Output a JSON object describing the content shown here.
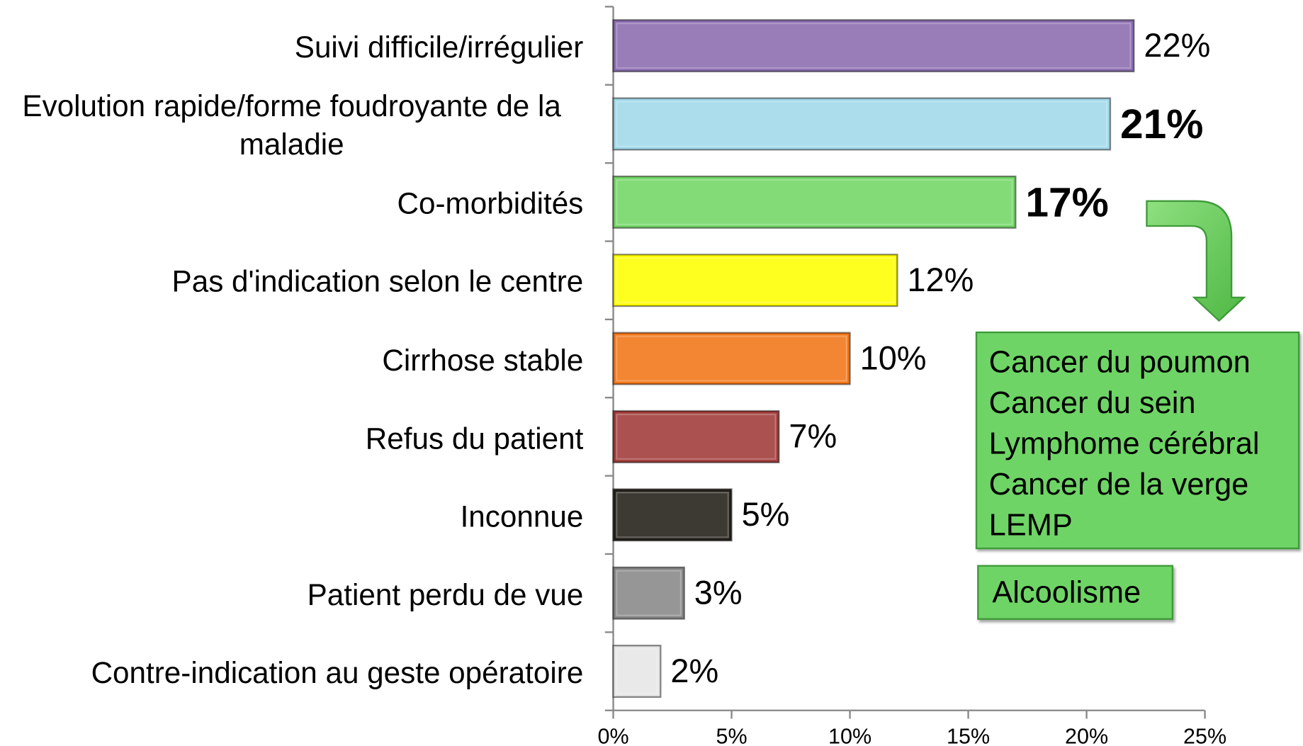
{
  "chart_data": {
    "type": "barh",
    "categories": [
      "Suivi difficile/irrégulier",
      "Evolution rapide/forme foudroyante de la maladie",
      "Co-morbidités",
      "Pas d'indication selon le centre",
      "Cirrhose stable",
      "Refus du patient",
      "Inconnue",
      "Patient perdu de vue",
      "Contre-indication au geste opératoire"
    ],
    "values": [
      22,
      21,
      17,
      12,
      10,
      7,
      5,
      3,
      2
    ],
    "value_labels": [
      "22%",
      "21%",
      "17%",
      "12%",
      "10%",
      "7%",
      "5%",
      "3%",
      "2%"
    ],
    "value_label_bold": [
      false,
      true,
      true,
      false,
      false,
      false,
      false,
      false,
      false
    ],
    "colors": [
      "#8a6cb0",
      "#a0d9ea",
      "#72d666",
      "#ffff00",
      "#f27617",
      "#a03a38",
      "#231f18",
      "#888888",
      "#e6e6e6"
    ],
    "xlim": [
      0,
      25
    ],
    "xticks": [
      {
        "value": 0,
        "label": "0%"
      },
      {
        "value": 5,
        "label": "5%"
      },
      {
        "value": 10,
        "label": "10%"
      },
      {
        "value": 15,
        "label": "15%"
      },
      {
        "value": 20,
        "label": "20%"
      },
      {
        "value": 25,
        "label": "25%"
      }
    ],
    "annotations": [
      {
        "lines": [
          "Cancer du poumon",
          "Cancer du sein",
          "Lymphome cérébral",
          "Cancer de la verge",
          "LEMP"
        ]
      },
      {
        "lines": [
          "Alcoolisme"
        ]
      }
    ]
  }
}
